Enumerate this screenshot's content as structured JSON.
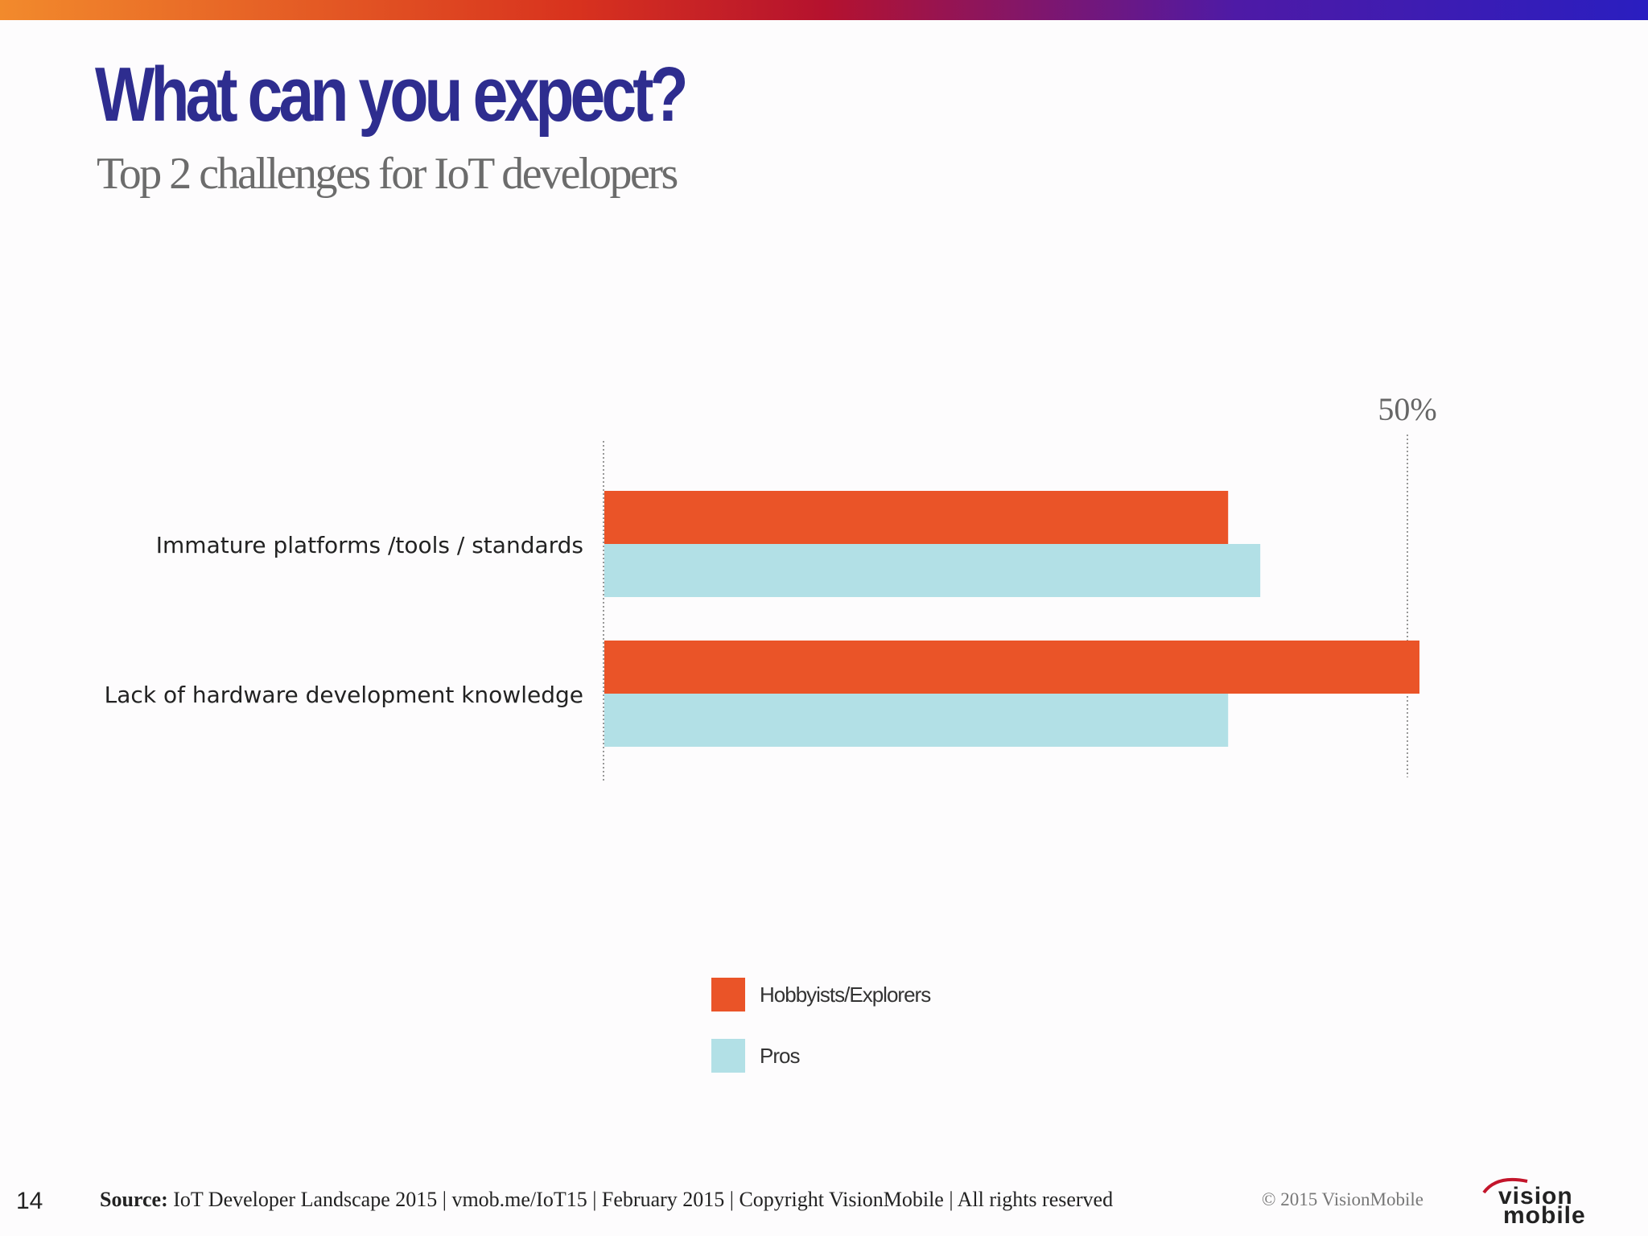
{
  "slide": {
    "title": "What can you expect?",
    "subtitle": "Top 2 challenges for IoT developers"
  },
  "colors": {
    "title": "#2e2d8f",
    "hobbyists": "#ea5428",
    "pros": "#b2e0e6",
    "band_start": "#f28a2c",
    "band_mid": "#c3152b",
    "band_end": "#2a1ec0"
  },
  "chart_data": {
    "type": "bar",
    "orientation": "horizontal",
    "categories": [
      "Immature platforms /tools / standards",
      "Lack of hardware development knowledge"
    ],
    "series": [
      {
        "name": "Hobbyists/Explorers",
        "values": [
          38.8,
          50.7
        ]
      },
      {
        "name": "Pros",
        "values": [
          40.8,
          38.8
        ]
      }
    ],
    "reference_label": "50%",
    "reference_value": 50,
    "xlim": [
      0,
      50
    ],
    "legend_position": "bottom-center"
  },
  "footer": {
    "page_number": "14",
    "source_label": "Source:",
    "source_text": " IoT Developer Landscape 2015  |  vmob.me/IoT15  |  February 2015  |  Copyright VisionMobile  |  All rights reserved",
    "copyright": "© 2015 VisionMobile",
    "logo_top": "vision",
    "logo_bottom": "mobile"
  }
}
